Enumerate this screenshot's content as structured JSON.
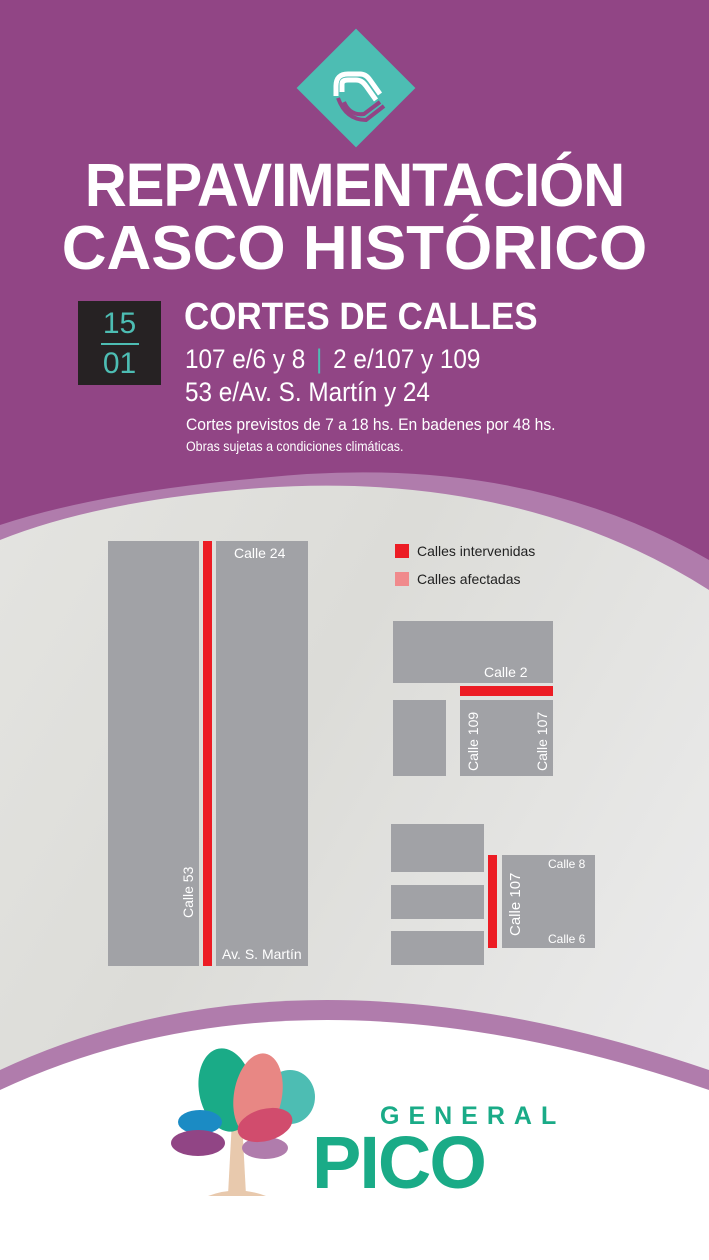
{
  "header": {
    "title_line1": "REPAVIMENTACIÓN",
    "title_line2": "CASCO HISTÓRICO"
  },
  "date": {
    "day": "15",
    "month": "01"
  },
  "notice": {
    "heading": "CORTES DE CALLES",
    "streets_a": "107 e/6 y 8",
    "separator": "|",
    "streets_b": "2 e/107 y 109",
    "streets_c": "53 e/Av. S. Martín y 24",
    "schedule": "Cortes previstos de 7 a 18 hs.  En badenes por 48 hs.",
    "disclaimer": "Obras sujetas a condiciones climáticas."
  },
  "legend": [
    {
      "label": "Calles intervenidas",
      "color": "#ec1c24"
    },
    {
      "label": "Calles afectadas",
      "color": "#f08a8c"
    }
  ],
  "maps": {
    "map1": {
      "top": "Calle 24",
      "bottom": "Av. S. Martín",
      "vertical": "Calle 53"
    },
    "map2": {
      "horizontal": "Calle 2",
      "left": "Calle 109",
      "right": "Calle 107"
    },
    "map3": {
      "vertical": "Calle 107",
      "top": "Calle 8",
      "bottom": "Calle 6"
    }
  },
  "colors": {
    "brand_purple": "#914585",
    "teal": "#4dbdb3",
    "green": "#1aab87",
    "closed": "#ec1c24",
    "block": "#a1a2a6"
  },
  "footer": {
    "logo_line1": "GENERAL",
    "logo_line2": "PICO"
  }
}
